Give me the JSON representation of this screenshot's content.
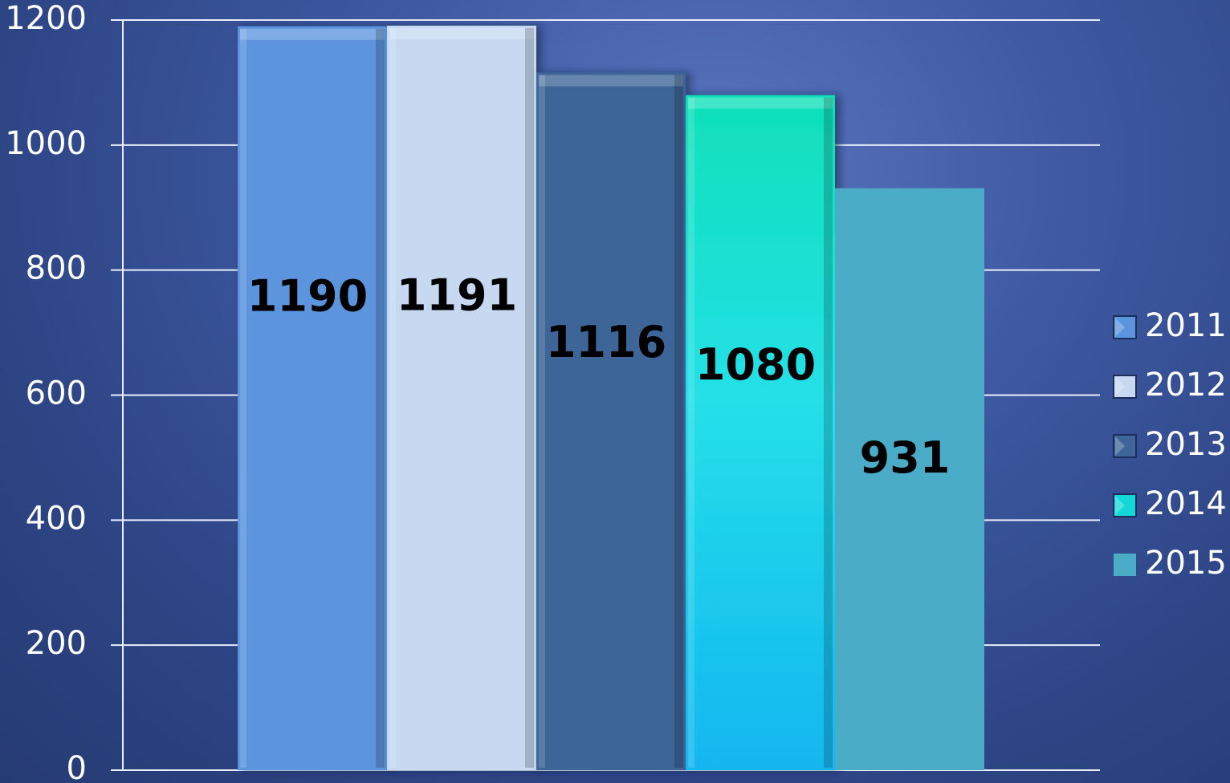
{
  "chart_data": {
    "type": "bar",
    "title": "",
    "xlabel": "",
    "ylabel": "",
    "ylim": [
      0,
      1200
    ],
    "yticks": [
      0,
      200,
      400,
      600,
      800,
      1000,
      1200
    ],
    "grid": true,
    "legend_position": "right",
    "series": [
      {
        "name": "2011",
        "value": 1190,
        "color": "#5b95dd"
      },
      {
        "name": "2012",
        "value": 1191,
        "color": "#c6d9f1"
      },
      {
        "name": "2013",
        "value": 1116,
        "color": "#3d6598"
      },
      {
        "name": "2014",
        "value": 1080,
        "color": "#12d6d6"
      },
      {
        "name": "2015",
        "value": 931,
        "color": "#4aacc6"
      }
    ]
  }
}
